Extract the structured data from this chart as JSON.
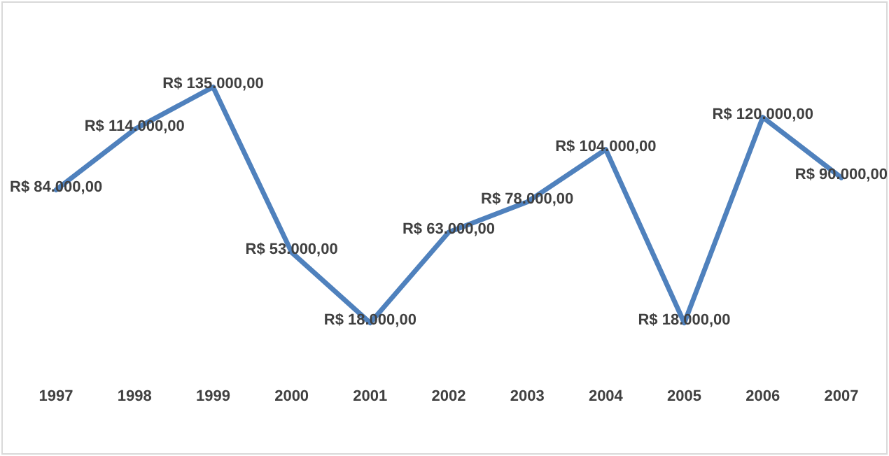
{
  "chart_data": {
    "type": "line",
    "categories": [
      "1997",
      "1998",
      "1999",
      "2000",
      "2001",
      "2002",
      "2003",
      "2004",
      "2005",
      "2006",
      "2007"
    ],
    "series": [
      {
        "color": "#4f81bd",
        "values": [
          84000,
          114000,
          135000,
          53000,
          18000,
          63000,
          78000,
          104000,
          18000,
          120000,
          90000
        ],
        "value_labels": [
          "R$ 84.000,00",
          "R$ 114.000,00",
          "R$ 135.000,00",
          "R$ 53.000,00",
          "R$ 18.000,00",
          "R$ 63.000,00",
          "R$ 78.000,00",
          "R$ 104.000,00",
          "R$ 18.000,00",
          "R$ 120.000,00",
          "R$ 90.000,00"
        ]
      }
    ],
    "tick_labels": "x",
    "grid": false,
    "legend": false,
    "marker": "none",
    "line_style": "solid"
  }
}
